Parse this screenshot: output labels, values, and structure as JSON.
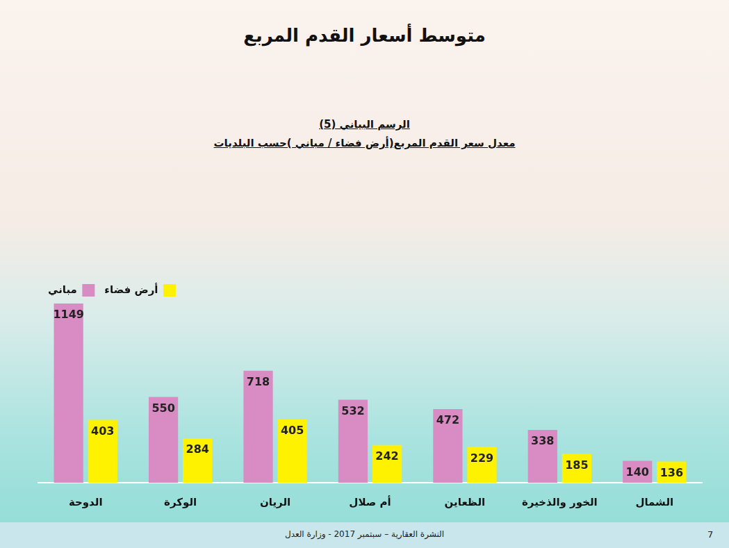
{
  "title": "متوسط أسعار القدم المربع",
  "footer": {
    "text": "النشرة العقارية – سبتمبر 2017 - وزارة العدل",
    "page": 7
  },
  "chart_data": {
    "type": "bar",
    "title": "الرسم البياني (5)",
    "subtitle": "معدل سعر القدم المربع(أرض فضاء / مباني )حسب البلديات",
    "categories": [
      "الدوحة",
      "الوكرة",
      "الريان",
      "أم صلال",
      "الظعاين",
      "الخور والذخيرة",
      "الشمال"
    ],
    "series": [
      {
        "name": "مباني",
        "color": "#d98cc3",
        "values": [
          1149,
          550,
          718,
          532,
          472,
          338,
          140
        ]
      },
      {
        "name": "أرض فضاء",
        "color": "#fff200",
        "values": [
          403,
          284,
          405,
          242,
          229,
          185,
          136
        ]
      }
    ],
    "ylim": [
      0,
      1149
    ],
    "grid": false,
    "legend": "upper right",
    "data_labels": true,
    "tick_labels": "x"
  }
}
